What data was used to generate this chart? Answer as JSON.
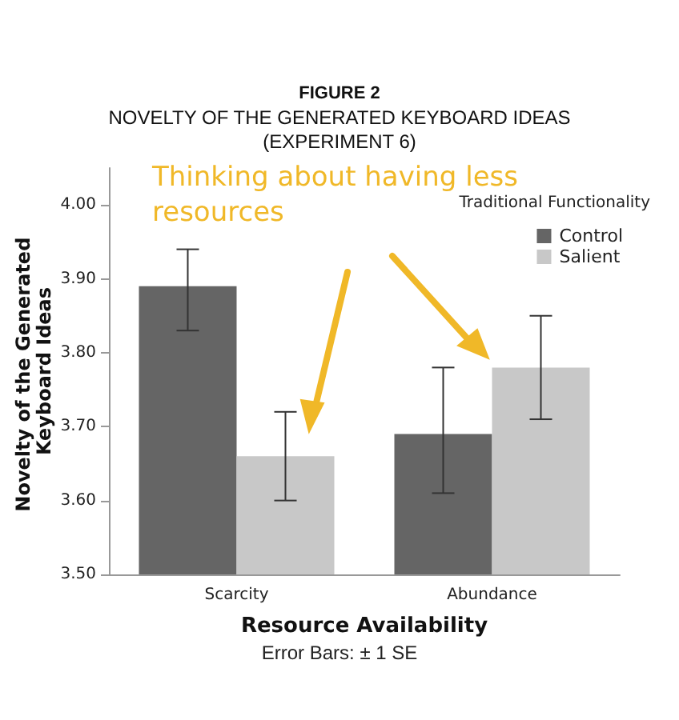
{
  "chart_data": {
    "type": "bar",
    "title": "FIGURE 2",
    "subtitle": "NOVELTY OF THE GENERATED KEYBOARD IDEAS\n(EXPERIMENT 6)",
    "xlabel": "Resource Availability",
    "ylabel": "Novelty of the Generated Keyboard Ideas",
    "legend_title": "Traditional Functionality",
    "categories": [
      "Scarcity",
      "Abundance"
    ],
    "series": [
      {
        "name": "Control",
        "color": "#656565",
        "values": [
          3.89,
          3.69
        ],
        "errors": [
          [
            3.83,
            3.94
          ],
          [
            3.61,
            3.78
          ]
        ]
      },
      {
        "name": "Salient",
        "color": "#c8c8c8",
        "values": [
          3.66,
          3.78
        ],
        "errors": [
          [
            3.6,
            3.72
          ],
          [
            3.71,
            3.85
          ]
        ]
      }
    ],
    "ylim": [
      3.5,
      4.05
    ],
    "yticks": [
      {
        "value": 3.5,
        "label": "3.50"
      },
      {
        "value": 3.6,
        "label": "3.60"
      },
      {
        "value": 3.7,
        "label": "3.70"
      },
      {
        "value": 3.8,
        "label": "3.80"
      },
      {
        "value": 3.9,
        "label": "3.90"
      },
      {
        "value": 4.0,
        "label": "4.00"
      }
    ],
    "legend": "top right",
    "grid": false,
    "annotations": [
      "Thinking about having less resources",
      "Error Bars: ± 1 SE"
    ]
  }
}
